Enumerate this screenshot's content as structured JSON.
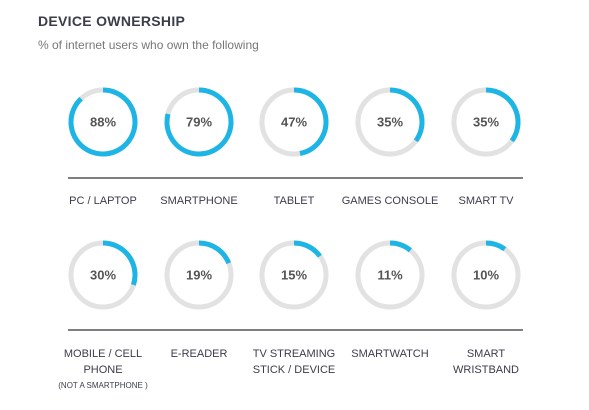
{
  "chart_data": {
    "type": "ring",
    "title": "DEVICE OWNERSHIP",
    "subtitle": "% of internet users who own the following",
    "categories": [
      "PC / LAPTOP",
      "SMARTPHONE",
      "TABLET",
      "GAMES CONSOLE",
      "SMART TV",
      "MOBILE / CELL PHONE",
      "E-READER",
      "TV STREAMING STICK / DEVICE",
      "SMARTWATCH",
      "SMART WRISTBAND"
    ],
    "values": [
      88,
      79,
      47,
      35,
      35,
      30,
      19,
      15,
      11,
      10
    ],
    "value_labels": [
      "88%",
      "79%",
      "47%",
      "35%",
      "35%",
      "30%",
      "19%",
      "15%",
      "11%",
      "10%"
    ],
    "annotation": "(NOT A SMARTPHONE )",
    "ylim": [
      0,
      100
    ],
    "color": "#1db4e6",
    "track_color": "#e2e2e2"
  }
}
